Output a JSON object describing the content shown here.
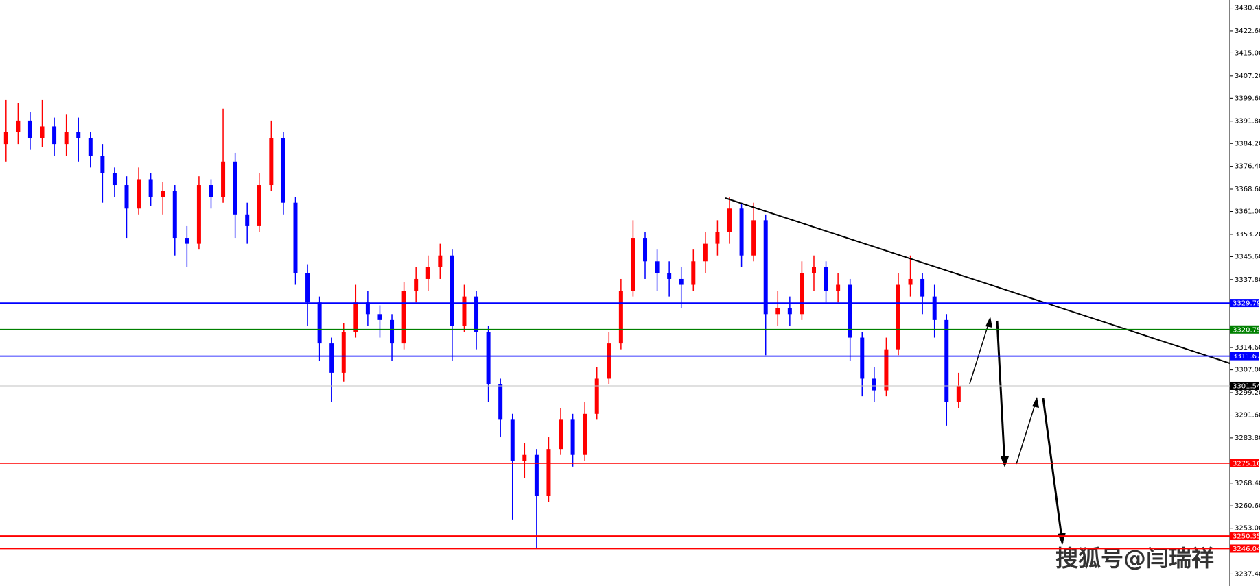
{
  "chart_data": {
    "type": "candlestick",
    "open": [
      3384,
      3388,
      3392,
      3386,
      3390,
      3384,
      3388,
      3386,
      3380,
      3374,
      3370,
      3362,
      3372,
      3366,
      3368,
      3352,
      3350,
      3370,
      3366,
      3378,
      3360,
      3356,
      3370,
      3386,
      3364,
      3340,
      3330,
      3316,
      3306,
      3320,
      3330,
      3326,
      3324,
      3316,
      3334,
      3338,
      3342,
      3346,
      3322,
      3332,
      3320,
      3302,
      3290,
      3276,
      3278,
      3264,
      3280,
      3290,
      3278,
      3292,
      3304,
      3316,
      3334,
      3352,
      3344,
      3340,
      3338,
      3336,
      3344,
      3350,
      3354,
      3362,
      3346,
      3358,
      3326,
      3328,
      3326,
      3340,
      3342,
      3334,
      3336,
      3318,
      3304,
      3300,
      3314,
      3336,
      3338,
      3332,
      3324,
      3296
    ],
    "high": [
      3399,
      3398,
      3395,
      3399,
      3393,
      3394,
      3393,
      3388,
      3384,
      3376,
      3373,
      3376,
      3374,
      3371,
      3370,
      3356,
      3373,
      3372,
      3396,
      3381,
      3364,
      3374,
      3392,
      3388,
      3366,
      3343,
      3332,
      3318,
      3323,
      3336,
      3334,
      3329,
      3326,
      3337,
      3342,
      3346,
      3350,
      3348,
      3336,
      3334,
      3322,
      3304,
      3292,
      3282,
      3280,
      3284,
      3294,
      3292,
      3296,
      3308,
      3320,
      3338,
      3358,
      3354,
      3348,
      3344,
      3342,
      3348,
      3354,
      3358,
      3366,
      3364,
      3364,
      3360,
      3334,
      3332,
      3344,
      3346,
      3344,
      3340,
      3338,
      3320,
      3308,
      3318,
      3340,
      3346,
      3340,
      3336,
      3326,
      3306
    ],
    "low": [
      3378,
      3384,
      3382,
      3383,
      3380,
      3380,
      3378,
      3376,
      3364,
      3366,
      3352,
      3360,
      3363,
      3360,
      3346,
      3342,
      3348,
      3362,
      3364,
      3352,
      3350,
      3354,
      3368,
      3360,
      3336,
      3322,
      3310,
      3296,
      3303,
      3318,
      3322,
      3318,
      3310,
      3314,
      3330,
      3334,
      3338,
      3310,
      3320,
      3314,
      3296,
      3284,
      3256,
      3270,
      3246,
      3262,
      3278,
      3274,
      3276,
      3290,
      3302,
      3314,
      3332,
      3338,
      3334,
      3332,
      3328,
      3334,
      3340,
      3346,
      3350,
      3342,
      3344,
      3312,
      3322,
      3322,
      3324,
      3334,
      3330,
      3330,
      3310,
      3298,
      3296,
      3298,
      3312,
      3332,
      3326,
      3318,
      3288,
      3294
    ],
    "close": [
      3388,
      3392,
      3386,
      3390,
      3384,
      3388,
      3386,
      3380,
      3374,
      3370,
      3362,
      3372,
      3366,
      3368,
      3352,
      3350,
      3370,
      3366,
      3378,
      3360,
      3356,
      3370,
      3386,
      3364,
      3340,
      3330,
      3316,
      3306,
      3320,
      3330,
      3326,
      3324,
      3316,
      3334,
      3338,
      3342,
      3346,
      3322,
      3332,
      3320,
      3302,
      3290,
      3276,
      3278,
      3264,
      3280,
      3290,
      3278,
      3292,
      3304,
      3316,
      3334,
      3352,
      3344,
      3340,
      3338,
      3336,
      3344,
      3350,
      3354,
      3362,
      3346,
      3358,
      3326,
      3328,
      3326,
      3340,
      3342,
      3334,
      3336,
      3318,
      3304,
      3300,
      3314,
      3336,
      3338,
      3332,
      3324,
      3296,
      3301.54
    ],
    "up_color": "#ff0000",
    "down_color": "#0000ff",
    "ylim": [
      3233.3,
      3433.1
    ],
    "yticks": [
      {
        "value": 3430.4,
        "label": "3430.40"
      },
      {
        "value": 3422.6,
        "label": "3422.60"
      },
      {
        "value": 3415.0,
        "label": "3415.00"
      },
      {
        "value": 3407.2,
        "label": "3407.20"
      },
      {
        "value": 3399.6,
        "label": "3399.60"
      },
      {
        "value": 3391.8,
        "label": "3391.80"
      },
      {
        "value": 3384.2,
        "label": "3384.20"
      },
      {
        "value": 3376.4,
        "label": "3376.40"
      },
      {
        "value": 3368.6,
        "label": "3368.60"
      },
      {
        "value": 3361.0,
        "label": "3361.00"
      },
      {
        "value": 3353.2,
        "label": "3353.20"
      },
      {
        "value": 3345.6,
        "label": "3345.60"
      },
      {
        "value": 3337.8,
        "label": "3337.80"
      },
      {
        "value": 3314.6,
        "label": "3314.60"
      },
      {
        "value": 3307.0,
        "label": "3307.00"
      },
      {
        "value": 3299.2,
        "label": "3299.20"
      },
      {
        "value": 3291.6,
        "label": "3291.60"
      },
      {
        "value": 3283.8,
        "label": "3283.80"
      },
      {
        "value": 3268.4,
        "label": "3268.40"
      },
      {
        "value": 3260.6,
        "label": "3260.60"
      },
      {
        "value": 3253.0,
        "label": "3253.00"
      },
      {
        "value": 3237.4,
        "label": "3237.40"
      }
    ],
    "levels": [
      {
        "value": 3329.79,
        "color": "#0000ff"
      },
      {
        "value": 3320.75,
        "color": "#008000"
      },
      {
        "value": 3311.67,
        "color": "#0000ff"
      },
      {
        "value": 3301.54,
        "color": "#c0c0c0",
        "label_background": "#000000"
      },
      {
        "value": 3275.16,
        "color": "#ff0000"
      },
      {
        "value": 3250.35,
        "color": "#ff0000"
      },
      {
        "value": 3246.04,
        "color": "#ff0000"
      }
    ],
    "annotation": "搜狐号@闫瑞祥"
  }
}
